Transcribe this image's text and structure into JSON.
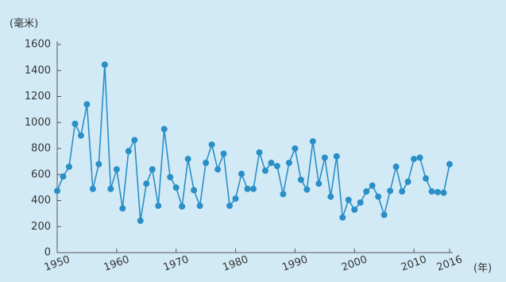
{
  "chart_data": {
    "type": "line",
    "ylabel": "(毫米)",
    "xlabel": "(年)",
    "x": [
      1950,
      1951,
      1952,
      1953,
      1954,
      1955,
      1956,
      1957,
      1958,
      1959,
      1960,
      1961,
      1962,
      1963,
      1964,
      1965,
      1966,
      1967,
      1968,
      1969,
      1970,
      1971,
      1972,
      1973,
      1974,
      1975,
      1976,
      1977,
      1978,
      1979,
      1980,
      1981,
      1982,
      1983,
      1984,
      1985,
      1986,
      1987,
      1988,
      1989,
      1990,
      1991,
      1992,
      1993,
      1994,
      1995,
      1996,
      1997,
      1998,
      1999,
      2000,
      2001,
      2002,
      2003,
      2004,
      2005,
      2006,
      2007,
      2008,
      2009,
      2010,
      2011,
      2012,
      2013,
      2014,
      2015,
      2016
    ],
    "series": [
      {
        "color": "#2a8fc7",
        "values": [
          475,
          585,
          660,
          990,
          900,
          1140,
          490,
          680,
          1445,
          490,
          640,
          340,
          780,
          865,
          245,
          530,
          640,
          360,
          950,
          580,
          500,
          355,
          720,
          480,
          360,
          690,
          830,
          640,
          760,
          360,
          415,
          605,
          490,
          490,
          770,
          630,
          690,
          665,
          450,
          690,
          800,
          560,
          485,
          855,
          530,
          730,
          430,
          740,
          270,
          405,
          330,
          385,
          470,
          515,
          430,
          290,
          475,
          660,
          470,
          545,
          720,
          730,
          570,
          470,
          465,
          460,
          680
        ]
      }
    ],
    "xlim": [
      1950,
      2016
    ],
    "xticks": [
      1950,
      1960,
      1970,
      1980,
      1990,
      2000,
      2010,
      2016
    ],
    "ylim": [
      0,
      1600
    ],
    "yticks": [
      0,
      200,
      400,
      600,
      800,
      1000,
      1200,
      1400,
      1600
    ]
  }
}
